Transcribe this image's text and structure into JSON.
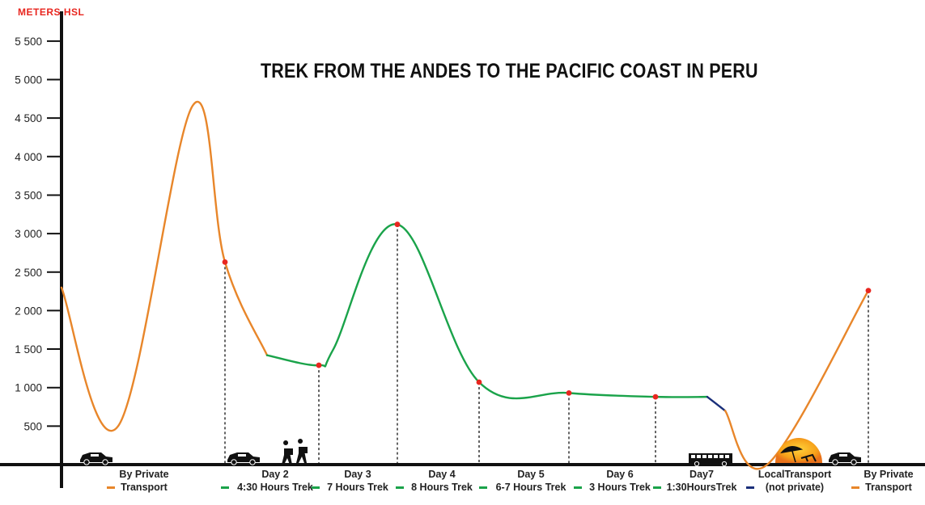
{
  "chart_data": {
    "type": "line",
    "title": "TREK FROM THE ANDES TO THE PACIFIC COAST IN PERU",
    "ylabel": "METERS HSL",
    "ylim": [
      0,
      5750
    ],
    "yticks": [
      {
        "value": 500,
        "label": "500"
      },
      {
        "value": 1000,
        "label": "1 000"
      },
      {
        "value": 1500,
        "label": "1 500"
      },
      {
        "value": 2000,
        "label": "2 000"
      },
      {
        "value": 2500,
        "label": "2 500"
      },
      {
        "value": 3000,
        "label": "3 000"
      },
      {
        "value": 3500,
        "label": "3 500"
      },
      {
        "value": 4000,
        "label": "4 000"
      },
      {
        "value": 4500,
        "label": "4 500"
      },
      {
        "value": 5000,
        "label": "5 000"
      },
      {
        "value": 5500,
        "label": "5 500"
      }
    ],
    "series": [
      {
        "mode": "private",
        "color": "#e8862a",
        "points": [
          [
            0,
            2300
          ],
          [
            70,
            500
          ],
          [
            162,
            4660
          ],
          [
            202,
            2630
          ],
          [
            254,
            1420
          ]
        ]
      },
      {
        "mode": "trek",
        "color": "#1aa34a",
        "points": [
          [
            254,
            1420
          ],
          [
            318,
            1290
          ],
          [
            336,
            1500
          ],
          [
            415,
            3120
          ],
          [
            516,
            1070
          ],
          [
            627,
            930
          ],
          [
            734,
            880
          ],
          [
            798,
            880
          ]
        ]
      },
      {
        "mode": "local",
        "color": "#1a2f7a",
        "points": [
          [
            798,
            880
          ],
          [
            820,
            700
          ]
        ]
      },
      {
        "mode": "private",
        "color": "#e8862a",
        "points": [
          [
            820,
            700
          ],
          [
            872,
            0
          ],
          [
            997,
            2260
          ]
        ]
      }
    ],
    "markers": [
      {
        "x": 202,
        "y": 2630
      },
      {
        "x": 318,
        "y": 1290
      },
      {
        "x": 415,
        "y": 3120
      },
      {
        "x": 516,
        "y": 1070
      },
      {
        "x": 627,
        "y": 930
      },
      {
        "x": 734,
        "y": 880
      },
      {
        "x": 997,
        "y": 2260
      }
    ],
    "segments": [
      {
        "line1": "By Private",
        "line2": "Transport",
        "color": "#e8862a"
      },
      {
        "line1": "Day 2",
        "line2": "4:30 Hours Trek",
        "color": "#1aa34a"
      },
      {
        "line1": "Day 3",
        "line2": "7 Hours Trek",
        "color": "#1aa34a"
      },
      {
        "line1": "Day 4",
        "line2": "8 Hours Trek",
        "color": "#1aa34a"
      },
      {
        "line1": "Day 5",
        "line2": "6-7 Hours Trek",
        "color": "#1aa34a"
      },
      {
        "line1": "Day 6",
        "line2": "3 Hours Trek",
        "color": "#1aa34a"
      },
      {
        "line1": "Day7",
        "line2": "1:30HoursTrek",
        "color": "#1aa34a"
      },
      {
        "line1": "LocalTransport",
        "line2": "(not private)",
        "color": "#1a2f7a"
      },
      {
        "line1": "By Private",
        "line2": "Transport",
        "color": "#e8862a"
      }
    ],
    "icons": [
      "car-icon",
      "car-icon",
      "hikers-icon",
      "bus-icon",
      "beach-sun-icon",
      "car-icon"
    ]
  }
}
